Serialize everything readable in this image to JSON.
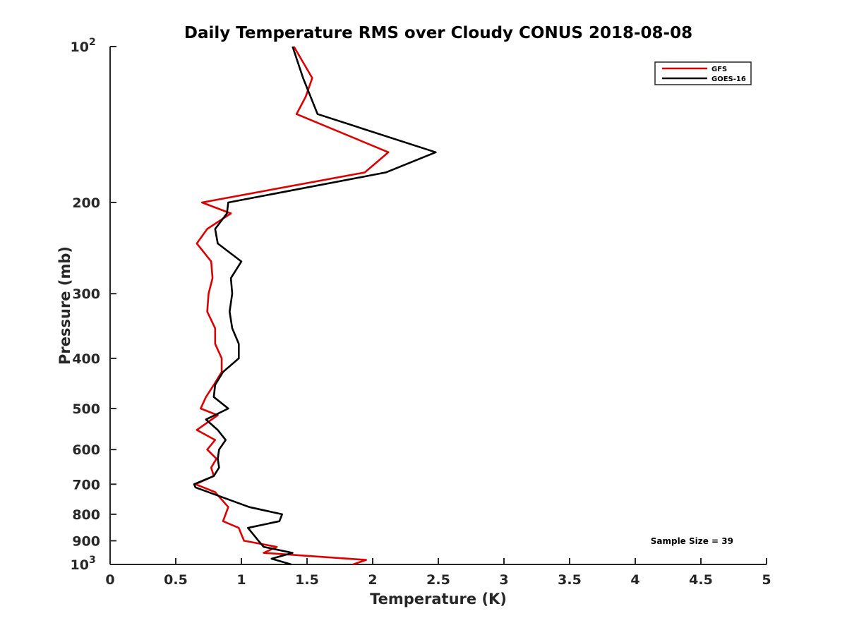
{
  "chart_data": {
    "type": "line",
    "title": "Daily Temperature RMS over Cloudy CONUS 2018-08-08",
    "xlabel": "Temperature (K)",
    "ylabel": "Pressure (mb)",
    "xlim": [
      0,
      5
    ],
    "ylim": [
      100,
      1000
    ],
    "y_scale": "log",
    "y_reversed": true,
    "grid": false,
    "legend_position": "top-right",
    "x_ticks": [
      0,
      0.5,
      1,
      1.5,
      2,
      2.5,
      3,
      3.5,
      4,
      4.5,
      5
    ],
    "x_tick_labels": [
      "0",
      "0.5",
      "1",
      "1.5",
      "2",
      "2.5",
      "3",
      "3.5",
      "4",
      "4.5",
      "5"
    ],
    "y_ticks": [
      {
        "value": 100,
        "base": "10",
        "exp": "2"
      },
      {
        "value": 200,
        "label": "200"
      },
      {
        "value": 300,
        "label": "300"
      },
      {
        "value": 400,
        "label": "400"
      },
      {
        "value": 500,
        "label": "500"
      },
      {
        "value": 600,
        "label": "600"
      },
      {
        "value": 700,
        "label": "700"
      },
      {
        "value": 800,
        "label": "800"
      },
      {
        "value": 900,
        "label": "900"
      },
      {
        "value": 1000,
        "base": "10",
        "exp": "3"
      }
    ],
    "annotation": "Sample Size = 39",
    "series": [
      {
        "name": "GFS",
        "color": "#dd0000",
        "points": [
          [
            1.4,
            100
          ],
          [
            1.54,
            115
          ],
          [
            1.49,
            125
          ],
          [
            1.42,
            135
          ],
          [
            2.12,
            160
          ],
          [
            1.94,
            175
          ],
          [
            0.7,
            200
          ],
          [
            0.92,
            210
          ],
          [
            0.74,
            225
          ],
          [
            0.66,
            240
          ],
          [
            0.77,
            260
          ],
          [
            0.78,
            280
          ],
          [
            0.75,
            300
          ],
          [
            0.74,
            325
          ],
          [
            0.8,
            350
          ],
          [
            0.8,
            375
          ],
          [
            0.85,
            400
          ],
          [
            0.85,
            425
          ],
          [
            0.79,
            450
          ],
          [
            0.73,
            475
          ],
          [
            0.69,
            500
          ],
          [
            0.82,
            515
          ],
          [
            0.66,
            550
          ],
          [
            0.8,
            575
          ],
          [
            0.74,
            600
          ],
          [
            0.81,
            625
          ],
          [
            0.77,
            650
          ],
          [
            0.79,
            675
          ],
          [
            0.65,
            700
          ],
          [
            0.8,
            725
          ],
          [
            0.9,
            775
          ],
          [
            0.86,
            825
          ],
          [
            0.98,
            850
          ],
          [
            1.02,
            900
          ],
          [
            1.27,
            925
          ],
          [
            1.17,
            950
          ],
          [
            1.95,
            980
          ],
          [
            1.85,
            1000
          ]
        ]
      },
      {
        "name": "GOES-16",
        "color": "#000000",
        "points": [
          [
            1.39,
            100
          ],
          [
            1.47,
            115
          ],
          [
            1.58,
            135
          ],
          [
            2.48,
            160
          ],
          [
            2.1,
            175
          ],
          [
            0.9,
            200
          ],
          [
            0.89,
            210
          ],
          [
            0.8,
            225
          ],
          [
            0.82,
            240
          ],
          [
            1.0,
            260
          ],
          [
            0.92,
            280
          ],
          [
            0.93,
            300
          ],
          [
            0.91,
            325
          ],
          [
            0.93,
            350
          ],
          [
            0.98,
            375
          ],
          [
            0.98,
            400
          ],
          [
            0.86,
            425
          ],
          [
            0.8,
            450
          ],
          [
            0.79,
            475
          ],
          [
            0.9,
            500
          ],
          [
            0.73,
            525
          ],
          [
            0.82,
            550
          ],
          [
            0.88,
            575
          ],
          [
            0.83,
            600
          ],
          [
            0.82,
            625
          ],
          [
            0.83,
            650
          ],
          [
            0.79,
            675
          ],
          [
            0.64,
            700
          ],
          [
            0.65,
            710
          ],
          [
            1.06,
            775
          ],
          [
            1.31,
            800
          ],
          [
            1.29,
            825
          ],
          [
            1.05,
            850
          ],
          [
            1.13,
            900
          ],
          [
            1.17,
            925
          ],
          [
            1.39,
            950
          ],
          [
            1.23,
            975
          ],
          [
            1.38,
            1000
          ]
        ]
      }
    ]
  }
}
